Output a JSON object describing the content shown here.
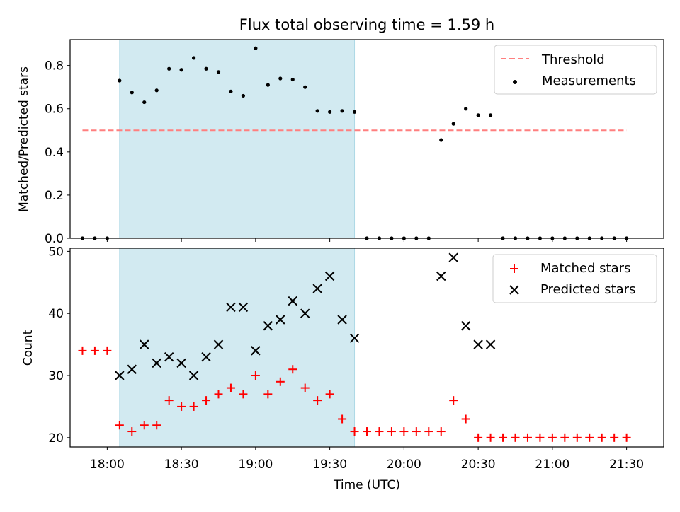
{
  "chart_data": [
    {
      "type": "scatter",
      "title": "Flux total observing time = 1.59 h",
      "xlabel": "",
      "ylabel": "Matched/Predicted stars",
      "ylim": [
        0,
        0.92
      ],
      "xlim": [
        "17:45",
        "21:45"
      ],
      "yticks": [
        0.0,
        0.2,
        0.4,
        0.6,
        0.8
      ],
      "ytick_labels": [
        "0.0",
        "0.2",
        "0.4",
        "0.6",
        "0.8"
      ],
      "shaded_span": [
        "18:05",
        "19:40"
      ],
      "grid": false,
      "legend_position": "top-right",
      "legend": [
        "Threshold",
        "Measurements"
      ],
      "series": [
        {
          "name": "Threshold",
          "kind": "dashed-line",
          "color": "#ff7f7f",
          "x": [
            "17:50",
            "21:30"
          ],
          "y": [
            0.5,
            0.5
          ]
        },
        {
          "name": "Measurements",
          "kind": "dots",
          "color": "#000000",
          "x": [
            "17:50",
            "17:55",
            "18:00",
            "18:05",
            "18:10",
            "18:15",
            "18:20",
            "18:25",
            "18:30",
            "18:35",
            "18:40",
            "18:45",
            "18:50",
            "18:55",
            "19:00",
            "19:05",
            "19:10",
            "19:15",
            "19:20",
            "19:25",
            "19:30",
            "19:35",
            "19:40",
            "19:45",
            "19:50",
            "19:55",
            "20:00",
            "20:05",
            "20:10",
            "20:15",
            "20:20",
            "20:25",
            "20:30",
            "20:35",
            "20:40",
            "20:45",
            "20:50",
            "20:55",
            "21:00",
            "21:05",
            "21:10",
            "21:15",
            "21:20",
            "21:25",
            "21:30"
          ],
          "y": [
            0.0,
            0.0,
            0.0,
            0.73,
            0.675,
            0.63,
            0.685,
            0.785,
            0.78,
            0.835,
            0.785,
            0.77,
            0.68,
            0.66,
            0.88,
            0.71,
            0.74,
            0.735,
            0.7,
            0.59,
            0.585,
            0.59,
            0.585,
            0.0,
            0.0,
            0.0,
            0.0,
            0.0,
            0.0,
            0.455,
            0.53,
            0.6,
            0.57,
            0.57,
            0.0,
            0.0,
            0.0,
            0.0,
            0.0,
            0.0,
            0.0,
            0.0,
            0.0,
            0.0,
            0.0
          ]
        }
      ]
    },
    {
      "type": "scatter",
      "title": "",
      "xlabel": "Time (UTC)",
      "ylabel": "Count",
      "ylim": [
        18.5,
        50.5
      ],
      "xlim": [
        "17:45",
        "21:45"
      ],
      "yticks": [
        20,
        30,
        40,
        50
      ],
      "ytick_labels": [
        "20",
        "30",
        "40",
        "50"
      ],
      "xticks": [
        "18:00",
        "18:30",
        "19:00",
        "19:30",
        "20:00",
        "20:30",
        "21:00",
        "21:30"
      ],
      "xtick_labels": [
        "18:00",
        "18:30",
        "19:00",
        "19:30",
        "20:00",
        "20:30",
        "21:00",
        "21:30"
      ],
      "shaded_span": [
        "18:05",
        "19:40"
      ],
      "grid": false,
      "legend_position": "top-right",
      "legend": [
        "Matched stars",
        "Predicted stars"
      ],
      "series": [
        {
          "name": "Matched stars",
          "kind": "plus",
          "color": "#ff0000",
          "x": [
            "17:50",
            "17:55",
            "18:00",
            "18:05",
            "18:10",
            "18:15",
            "18:20",
            "18:25",
            "18:30",
            "18:35",
            "18:40",
            "18:45",
            "18:50",
            "18:55",
            "19:00",
            "19:05",
            "19:10",
            "19:15",
            "19:20",
            "19:25",
            "19:30",
            "19:35",
            "19:40",
            "19:45",
            "19:50",
            "19:55",
            "20:00",
            "20:05",
            "20:10",
            "20:15",
            "20:20",
            "20:25",
            "20:30",
            "20:35",
            "20:40",
            "20:45",
            "20:50",
            "20:55",
            "21:00",
            "21:05",
            "21:10",
            "21:15",
            "21:20",
            "21:25",
            "21:30"
          ],
          "y": [
            34,
            34,
            34,
            22,
            21,
            22,
            22,
            26,
            25,
            25,
            26,
            27,
            28,
            27,
            30,
            27,
            29,
            31,
            28,
            26,
            27,
            23,
            21,
            21,
            21,
            21,
            21,
            21,
            21,
            21,
            26,
            23,
            20,
            20,
            20,
            20,
            20,
            20,
            20,
            20,
            20,
            20,
            20,
            20,
            20
          ]
        },
        {
          "name": "Predicted stars",
          "kind": "x",
          "color": "#000000",
          "x": [
            "18:05",
            "18:10",
            "18:15",
            "18:20",
            "18:25",
            "18:30",
            "18:35",
            "18:40",
            "18:45",
            "18:50",
            "18:55",
            "19:00",
            "19:05",
            "19:10",
            "19:15",
            "19:20",
            "19:25",
            "19:30",
            "19:35",
            "19:40",
            "20:15",
            "20:20",
            "20:25",
            "20:30",
            "20:35"
          ],
          "y": [
            30,
            31,
            35,
            32,
            33,
            32,
            30,
            33,
            35,
            41,
            41,
            34,
            38,
            39,
            42,
            40,
            44,
            46,
            39,
            36,
            46,
            49,
            38,
            35,
            35
          ]
        }
      ]
    }
  ],
  "colors": {
    "shade": "#add8e6",
    "threshold": "#ff7f7f",
    "matched": "#ff0000",
    "predicted": "#000000",
    "measurement": "#000000"
  }
}
